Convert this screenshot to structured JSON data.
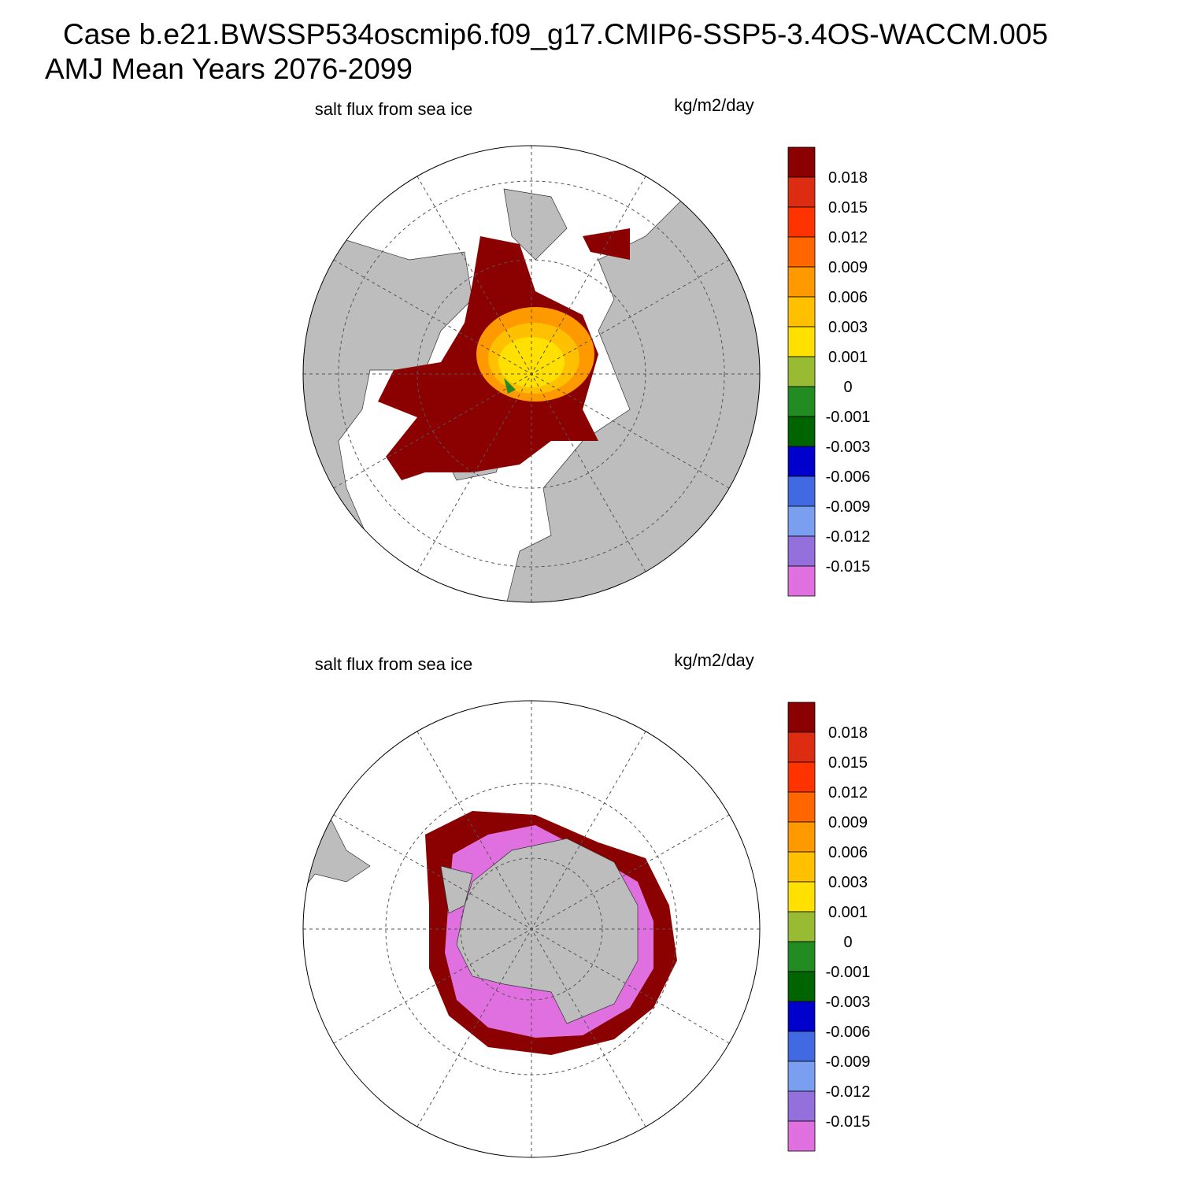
{
  "header": {
    "title_line1": "Case b.e21.BWSSP534oscmip6.f09_g17.CMIP6-SSP5-3.4OS-WACCM.005",
    "title_line2": "AMJ Mean   Years 2076-2099"
  },
  "panels": [
    {
      "title": "salt flux from sea ice",
      "units": "kg/m2/day"
    },
    {
      "title": "salt flux from sea ice",
      "units": "kg/m2/day"
    }
  ],
  "colorbar": {
    "colors": [
      "#8b0000",
      "#dc2c12",
      "#ff3300",
      "#ff6600",
      "#ff9900",
      "#ffc000",
      "#ffe000",
      "#99bb33",
      "#228b22",
      "#006400",
      "#0000cd",
      "#4169e1",
      "#7b9ff0",
      "#9370db",
      "#e070e0"
    ],
    "labels": [
      "0.018",
      "0.015",
      "0.012",
      "0.009",
      "0.006",
      "0.003",
      "0.001",
      "0",
      "-0.001",
      "-0.003",
      "-0.006",
      "-0.009",
      "-0.012",
      "-0.015"
    ]
  }
}
